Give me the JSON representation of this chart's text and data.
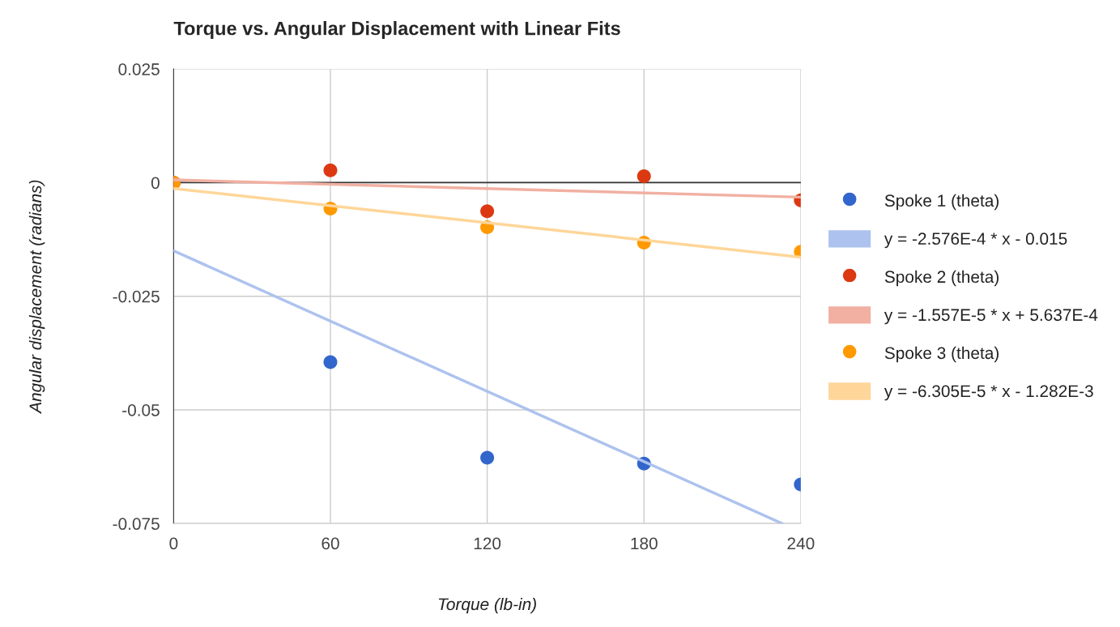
{
  "chart_data": {
    "type": "scatter",
    "title": "Torque vs. Angular Displacement with Linear Fits",
    "xlabel": "Torque (lb-in)",
    "ylabel": "Angular displacement (radians)",
    "x": [
      0,
      60,
      120,
      180,
      240
    ],
    "series": [
      {
        "name": "Spoke 1 (theta)",
        "color": "#3366cc",
        "values": [
          0,
          -0.0395,
          -0.0605,
          -0.0618,
          -0.0664
        ]
      },
      {
        "name": "y = -2.576E-4 * x - 0.015",
        "type": "line",
        "color": "#adc2ee",
        "x": [
          0,
          232.9
        ],
        "values": [
          -0.015,
          -0.075
        ],
        "marker": "none"
      },
      {
        "name": "Spoke 2 (theta)",
        "color": "#dc3912",
        "values": [
          0,
          0.0027,
          -0.0063,
          0.0014,
          -0.0039
        ]
      },
      {
        "name": "y = -1.557E-5 * x + 5.637E-4",
        "type": "line",
        "color": "#f1b0a2",
        "x": [
          0,
          240
        ],
        "values": [
          0.0006,
          -0.0032
        ],
        "marker": "none"
      },
      {
        "name": "Spoke 3 (theta)",
        "color": "#ff9900",
        "values": [
          0,
          -0.0057,
          -0.0098,
          -0.0132,
          -0.0152
        ]
      },
      {
        "name": "y = -6.305E-5 * x - 1.282E-3",
        "type": "line",
        "color": "#ffd699",
        "x": [
          0,
          240
        ],
        "values": [
          -0.0013,
          -0.0164
        ],
        "marker": "none"
      }
    ],
    "xlim": [
      0,
      240
    ],
    "xticks": [
      0,
      60,
      120,
      180,
      240
    ],
    "ylim": [
      -0.075,
      0.025
    ],
    "yticks": [
      0.025,
      0,
      -0.025,
      -0.05,
      -0.075
    ],
    "ref_lines": [
      {
        "axis": "y",
        "value": 0,
        "color": "#333333"
      }
    ],
    "grid": true,
    "legend": "right",
    "marker": "circle"
  }
}
